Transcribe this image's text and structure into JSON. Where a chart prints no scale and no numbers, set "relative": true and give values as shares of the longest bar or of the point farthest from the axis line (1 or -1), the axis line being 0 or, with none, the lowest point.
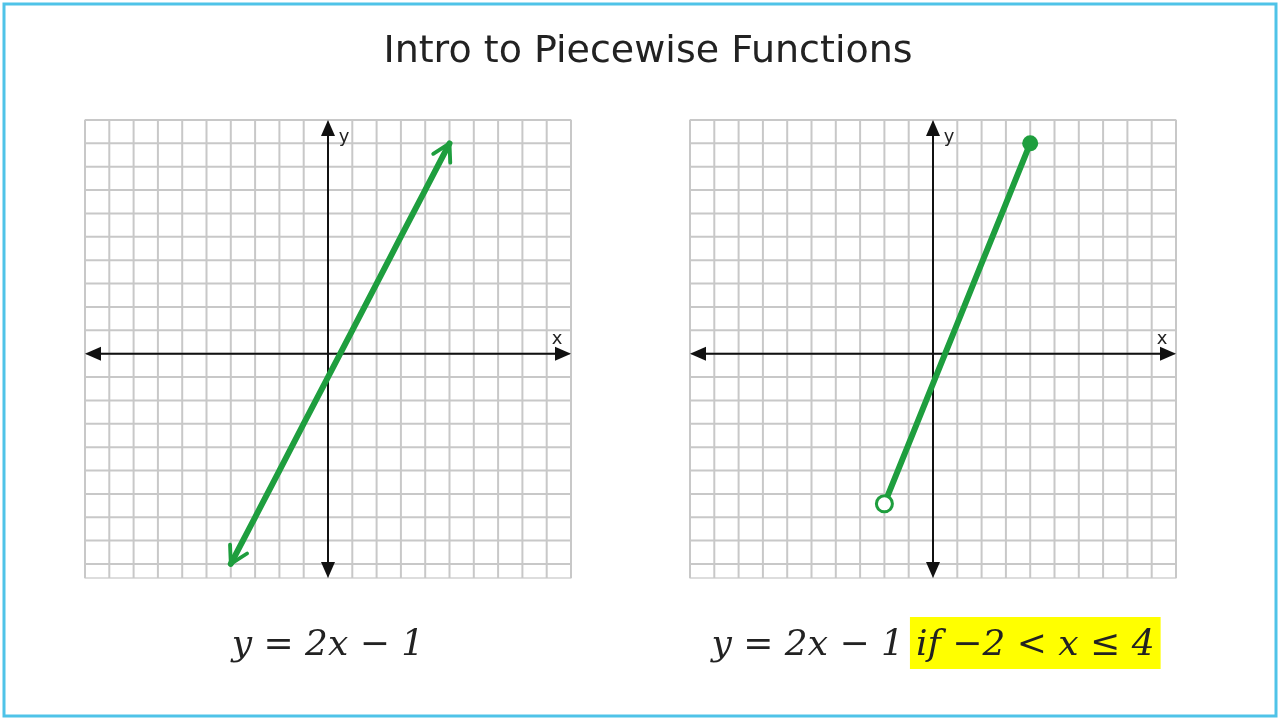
{
  "chart_data": [
    {
      "type": "line",
      "title": "Intro to Piecewise Functions",
      "xlabel": "x",
      "ylabel": "y",
      "relative": true,
      "grid": true,
      "annotations": [
        "y = 2x − 1"
      ],
      "categories": [
        null,
        null,
        null,
        null,
        null,
        null,
        null,
        null,
        null,
        null,
        null,
        null,
        null,
        null,
        null,
        null,
        null,
        null,
        null,
        null,
        null
      ],
      "series": [
        {
          "color": "#1e9e3e",
          "values": [
            null,
            null,
            null,
            null,
            null,
            null,
            -1,
            -0.778,
            -0.556,
            -0.333,
            -0.111,
            0.111,
            0.333,
            0.556,
            0.778,
            1,
            null,
            null,
            null,
            null,
            null
          ]
        }
      ]
    },
    {
      "type": "line",
      "xlabel": "x",
      "ylabel": "y",
      "relative": true,
      "grid": true,
      "annotations": [
        "y = 2x − 1",
        "if −2 < x ≤ 4"
      ],
      "categories": [
        null,
        null,
        null,
        null,
        null,
        null,
        null,
        null,
        null,
        null,
        null,
        null,
        null,
        null,
        null,
        null,
        null,
        null,
        null,
        null,
        null
      ],
      "series": [
        {
          "color": "#1e9e3e",
          "values": [
            null,
            null,
            null,
            null,
            null,
            null,
            null,
            null,
            -0.714,
            -0.429,
            -0.143,
            0.143,
            0.429,
            0.714,
            1,
            null,
            null,
            null,
            null,
            null,
            null
          ]
        }
      ]
    }
  ]
}
